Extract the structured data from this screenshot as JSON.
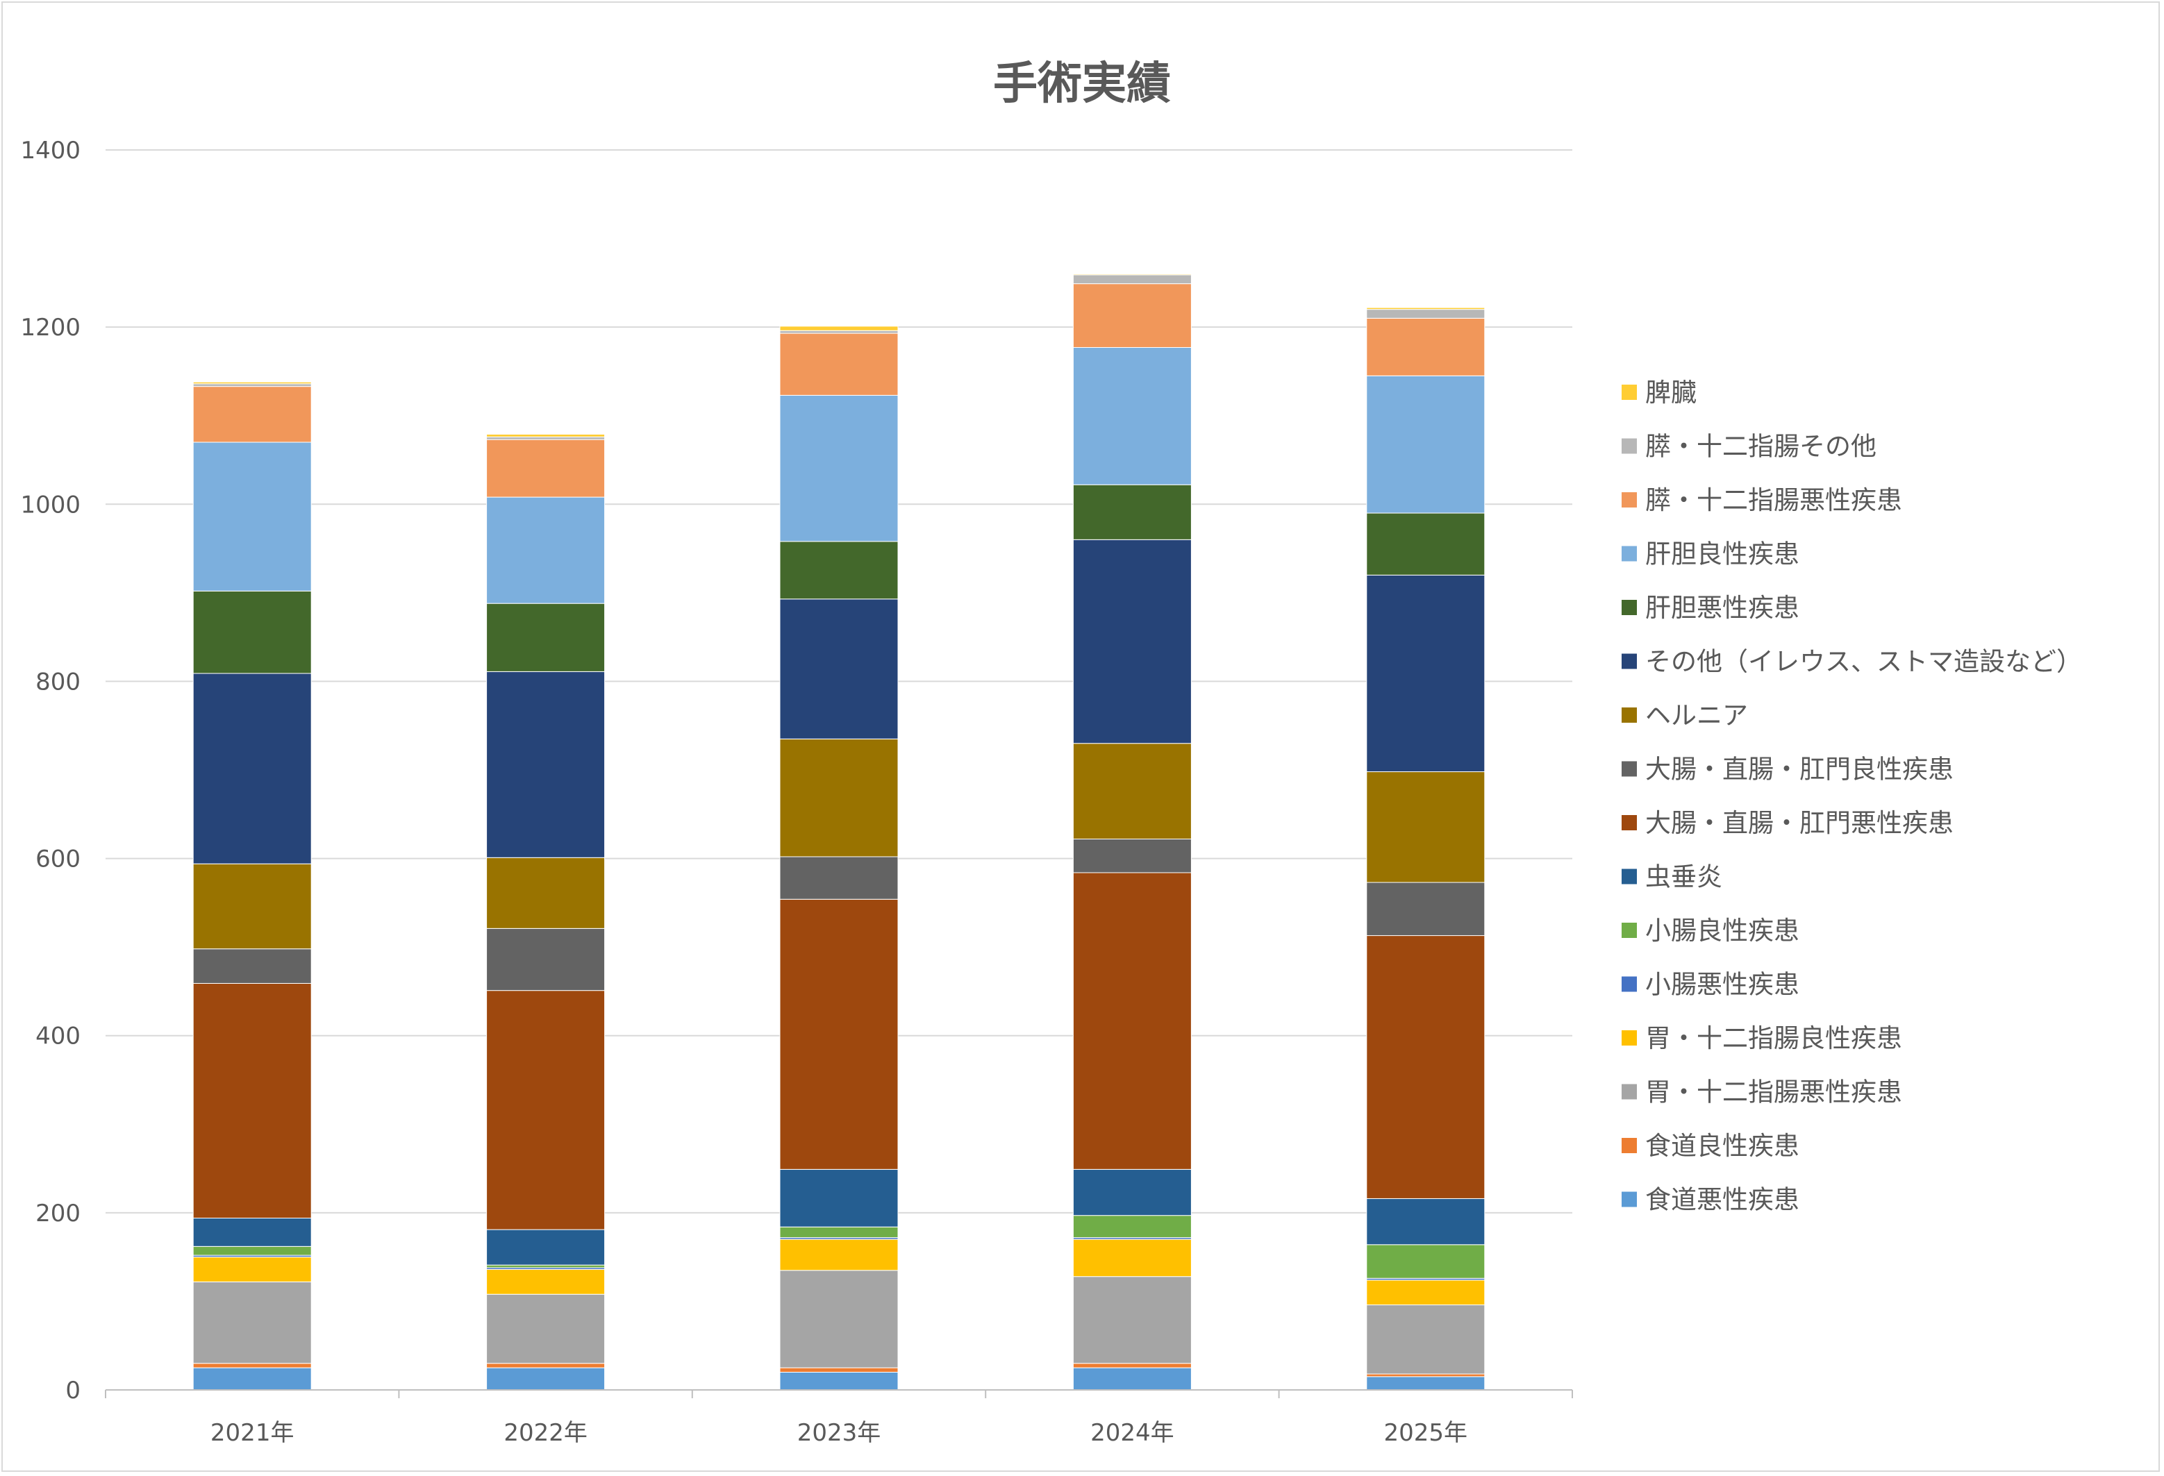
{
  "chart_data": {
    "type": "bar",
    "stacked": true,
    "title": "手術実績",
    "xlabel": "",
    "ylabel": "",
    "categories": [
      "2021年",
      "2022年",
      "2023年",
      "2024年",
      "2025年"
    ],
    "ylim": [
      0,
      1400
    ],
    "yticks": [
      0,
      200,
      400,
      600,
      800,
      1000,
      1200,
      1400
    ],
    "grid": true,
    "legend_position": "right",
    "series": [
      {
        "name": "食道悪性疾患",
        "color": "#5b9bd5",
        "values": [
          25,
          25,
          20,
          25,
          15
        ]
      },
      {
        "name": "食道良性疾患",
        "color": "#ed7d31",
        "values": [
          5,
          5,
          5,
          5,
          3
        ]
      },
      {
        "name": "胃・十二指腸悪性疾患",
        "color": "#a5a5a5",
        "values": [
          92,
          78,
          110,
          98,
          78
        ]
      },
      {
        "name": "胃・十二指腸良性疾患",
        "color": "#ffc000",
        "values": [
          28,
          28,
          35,
          42,
          28
        ]
      },
      {
        "name": "小腸悪性疾患",
        "color": "#4472c4",
        "values": [
          2,
          2,
          2,
          2,
          2
        ]
      },
      {
        "name": "小腸良性疾患",
        "color": "#70ad47",
        "values": [
          10,
          3,
          12,
          25,
          38
        ]
      },
      {
        "name": "虫垂炎",
        "color": "#255e91",
        "values": [
          32,
          40,
          65,
          52,
          52
        ]
      },
      {
        "name": "大腸・直腸・肛門悪性疾患",
        "color": "#9e480e",
        "values": [
          265,
          270,
          305,
          335,
          297
        ]
      },
      {
        "name": "大腸・直腸・肛門良性疾患",
        "color": "#636363",
        "values": [
          39,
          70,
          48,
          38,
          60
        ]
      },
      {
        "name": "ヘルニア",
        "color": "#997300",
        "values": [
          96,
          80,
          133,
          108,
          125
        ]
      },
      {
        "name": "その他（イレウス、ストマ造設など）",
        "color": "#264478",
        "values": [
          215,
          210,
          158,
          230,
          222
        ]
      },
      {
        "name": "肝胆悪性疾患",
        "color": "#43682b",
        "values": [
          93,
          77,
          65,
          62,
          70
        ]
      },
      {
        "name": "肝胆良性疾患",
        "color": "#7cafdd",
        "values": [
          168,
          120,
          165,
          155,
          155
        ]
      },
      {
        "name": "膵・十二指腸悪性疾患",
        "color": "#f1975a",
        "values": [
          63,
          65,
          70,
          72,
          65
        ]
      },
      {
        "name": "膵・十二指腸その他",
        "color": "#b7b7b7",
        "values": [
          3,
          3,
          3,
          10,
          10
        ]
      },
      {
        "name": "脾臓",
        "color": "#ffcd33",
        "values": [
          2,
          3,
          5,
          1,
          2
        ]
      }
    ]
  }
}
